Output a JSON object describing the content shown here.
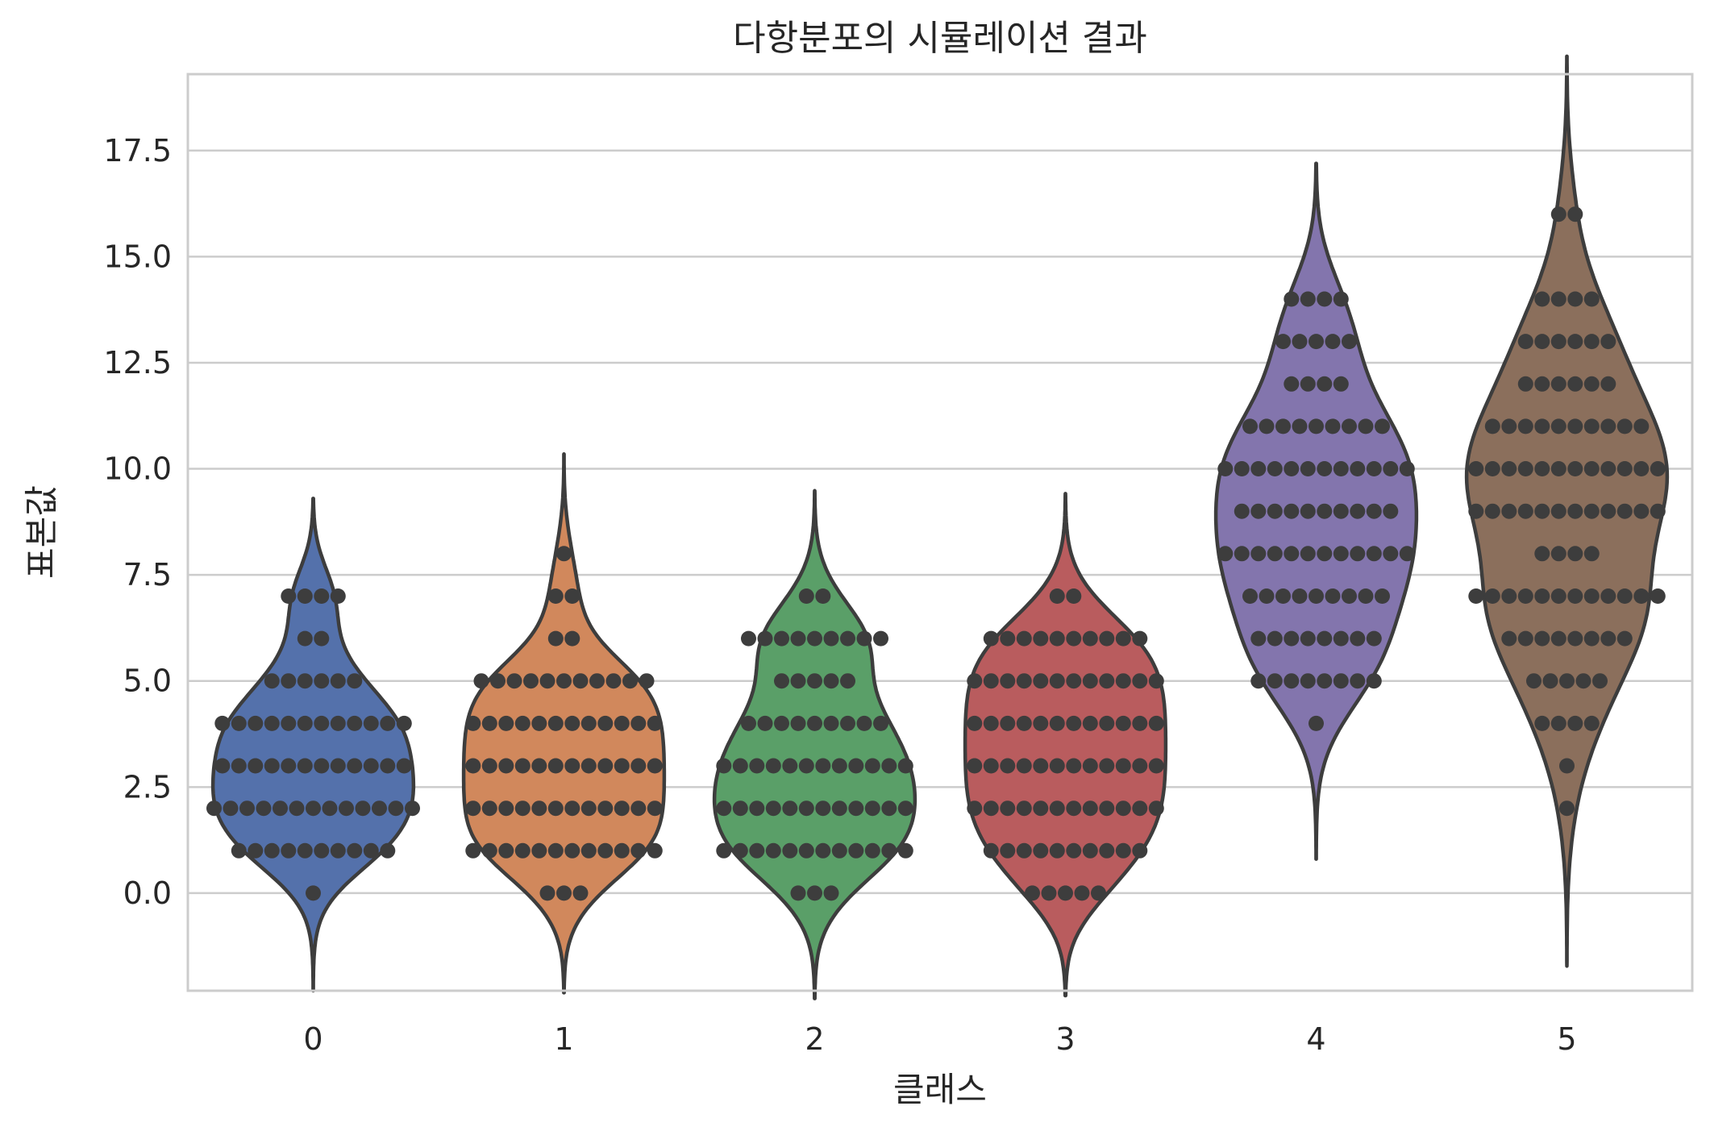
{
  "chart_data": {
    "type": "violin",
    "title": "다항분포의 시뮬레이션 결과",
    "xlabel": "클래스",
    "ylabel": "표본값",
    "categories": [
      "0",
      "1",
      "2",
      "3",
      "4",
      "5"
    ],
    "ylim": [
      -2.3,
      19.3
    ],
    "yticks": [
      0.0,
      2.5,
      5.0,
      7.5,
      10.0,
      12.5,
      15.0,
      17.5
    ],
    "ytick_labels": [
      "0.0",
      "2.5",
      "5.0",
      "7.5",
      "10.0",
      "12.5",
      "15.0",
      "17.5"
    ],
    "grid": "horizontal",
    "colors": [
      "#5471ab",
      "#d1885c",
      "#5a9f68",
      "#b95c5e",
      "#8375ad",
      "#8b6f5c"
    ],
    "point_color": "#3d3d3d",
    "outline_color": "#3d3d3d",
    "series": [
      {
        "category": "0",
        "counts": {
          "0": 1,
          "1": 10,
          "2": 13,
          "3": 12,
          "4": 12,
          "5": 6,
          "6": 2,
          "7": 4
        }
      },
      {
        "category": "1",
        "counts": {
          "0": 3,
          "1": 12,
          "2": 12,
          "3": 12,
          "4": 12,
          "5": 11,
          "6": 2,
          "7": 2,
          "8": 1
        }
      },
      {
        "category": "2",
        "counts": {
          "0": 3,
          "1": 12,
          "2": 12,
          "3": 12,
          "4": 9,
          "5": 5,
          "6": 9,
          "7": 2
        }
      },
      {
        "category": "3",
        "counts": {
          "0": 5,
          "1": 10,
          "2": 12,
          "3": 12,
          "4": 12,
          "5": 12,
          "6": 10,
          "7": 2
        }
      },
      {
        "category": "4",
        "counts": {
          "4": 1,
          "5": 8,
          "6": 8,
          "7": 9,
          "8": 12,
          "9": 10,
          "10": 12,
          "11": 9,
          "12": 4,
          "13": 5,
          "14": 4
        }
      },
      {
        "category": "5",
        "counts": {
          "2": 1,
          "3": 1,
          "4": 4,
          "5": 5,
          "6": 8,
          "7": 12,
          "8": 4,
          "9": 12,
          "10": 12,
          "11": 10,
          "12": 6,
          "13": 6,
          "14": 4,
          "16": 2
        }
      }
    ]
  }
}
